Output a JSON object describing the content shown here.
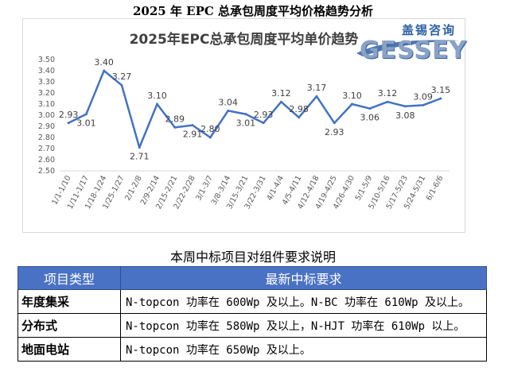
{
  "document": {
    "title": "2025 年 EPC 总承包周度平均价格趋势分析",
    "table_title": "本周中标项目对组件要求说明"
  },
  "logo": {
    "cn_text": "盖锡咨询",
    "en_text": "GESSEY"
  },
  "chart_data": {
    "type": "line",
    "title": "2025年EPC总承包周度平均单价趋势",
    "xlabel": "",
    "ylabel": "",
    "ylim": [
      2.5,
      3.5
    ],
    "yticks": [
      "2.50",
      "2.60",
      "2.70",
      "2.80",
      "2.90",
      "3.00",
      "3.10",
      "3.20",
      "3.30",
      "3.40",
      "3.50"
    ],
    "grid": false,
    "color": "#4472c4",
    "categories": [
      "1/1-1/10",
      "1/11-1/17",
      "1/18-1/24",
      "1/25-1/27",
      "2/1-2/8",
      "2/9-2/14",
      "2/15-2/21",
      "2/22-2/28",
      "3/1-3/7",
      "3/8-3/14",
      "3/15-3/21",
      "3/22-3/31",
      "4/1-4/4",
      "4/5-4/11",
      "4/12-4/18",
      "4/19-4/25",
      "4/26-4/30",
      "5/1-5/9",
      "5/10-5/16",
      "5/17-5/23",
      "5/24-5/31",
      "6/1-6/6"
    ],
    "values": [
      2.93,
      3.01,
      3.4,
      3.27,
      2.71,
      3.1,
      2.89,
      2.91,
      2.8,
      3.04,
      3.01,
      2.93,
      3.12,
      2.98,
      3.17,
      2.93,
      3.1,
      3.06,
      3.12,
      3.08,
      3.09,
      3.15
    ],
    "labels": [
      "2.93",
      "3.01",
      "3.40",
      "3.27",
      "2.71",
      "3.10",
      "2.89",
      "2.91",
      "2.80",
      "3.04",
      "3.01",
      "2.93",
      "3.12",
      "2.98",
      "3.17",
      "2.93",
      "3.10",
      "3.06",
      "3.12",
      "3.08",
      "3.09",
      "3.15"
    ],
    "label_pos": [
      "above",
      "below",
      "above",
      "above",
      "below",
      "above",
      "above",
      "below",
      "above",
      "above",
      "below",
      "above",
      "above",
      "above",
      "above",
      "below",
      "above",
      "below",
      "above",
      "below",
      "above",
      "above"
    ]
  },
  "table": {
    "headers": [
      "项目类型",
      "最新中标要求"
    ],
    "rows": [
      {
        "type": "年度集采",
        "req": "N-topcon 功率在 600Wp 及以上。N-BC 功率在 610Wp 及以上。"
      },
      {
        "type": "分布式",
        "req": "N-topcon 功率在 580Wp 及以上，N-HJT 功率在 610Wp 以上。"
      },
      {
        "type": "地面电站",
        "req": "N-topcon 功率在 650Wp 及以上。"
      }
    ]
  }
}
